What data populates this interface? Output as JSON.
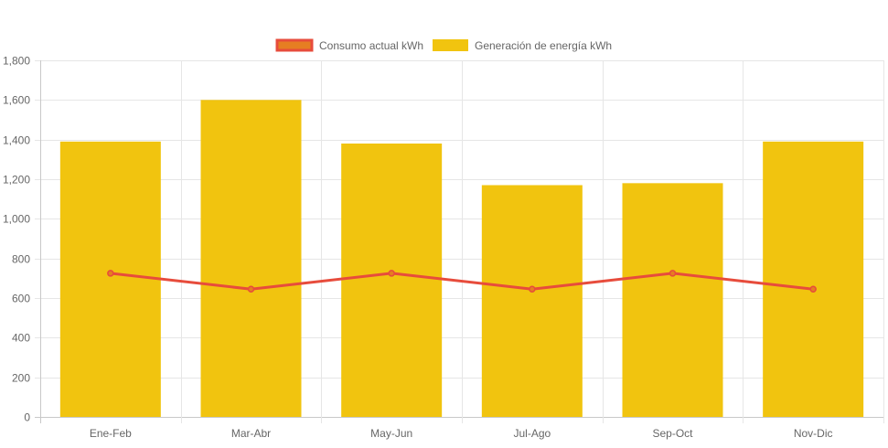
{
  "chart_data": {
    "type": "bar",
    "title": "",
    "xlabel": "",
    "ylabel": "",
    "categories": [
      "Ene-Feb",
      "Mar-Abr",
      "May-Jun",
      "Jul-Ago",
      "Sep-Oct",
      "Nov-Dic"
    ],
    "ylim": [
      0,
      1800
    ],
    "yticks": [
      0,
      200,
      400,
      600,
      800,
      1000,
      1200,
      1400,
      1600,
      1800
    ],
    "ytick_labels": [
      "0",
      "200",
      "400",
      "600",
      "800",
      "1,000",
      "1,200",
      "1,400",
      "1,600",
      "1,800"
    ],
    "grid": true,
    "legend_position": "top",
    "series": [
      {
        "name": "Consumo actual kWh",
        "type": "line",
        "values": [
          725,
          645,
          725,
          645,
          725,
          645
        ],
        "color": "#e74c3c",
        "legend_fill": "#e67e22"
      },
      {
        "name": "Generación de energía kWh",
        "type": "bar",
        "values": [
          1390,
          1600,
          1380,
          1170,
          1180,
          1390
        ],
        "color": "#f1c40f"
      }
    ]
  }
}
